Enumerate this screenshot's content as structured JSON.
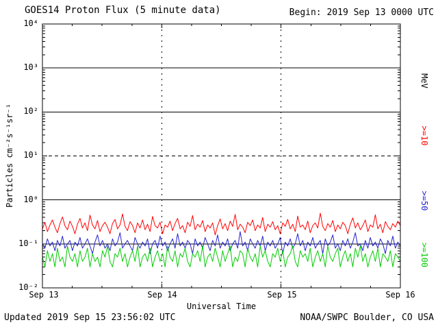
{
  "title": "GOES14 Proton Flux (5 minute data)",
  "begin_label": "Begin: 2019 Sep 13 0000 UTC",
  "footer": {
    "updated": "Updated 2019 Sep 15 23:56:02 UTC",
    "source": "NOAA/SWPC Boulder, CO USA"
  },
  "chart_data": {
    "type": "line",
    "y_scale": "log",
    "ylim": [
      0.01,
      10000
    ],
    "xlabel": "Universal Time",
    "ylabel": "Particles cm⁻²s⁻¹sr⁻¹",
    "unit_label": "MeV",
    "ytick_labels": [
      "10⁴",
      "10³",
      "10²",
      "10¹",
      "10⁰",
      "10⁻¹",
      "10⁻²"
    ],
    "categories": [
      "Sep 13",
      "Sep 14",
      "Sep 15",
      "Sep 16"
    ],
    "gridlines": {
      "solid": [
        1000,
        100,
        1,
        0.1
      ],
      "dashed": [
        10
      ],
      "vlines": [
        "Sep 14",
        "Sep 15"
      ]
    },
    "series": [
      {
        "name": ">=10 MeV",
        "label": ">=10",
        "color": "#ff0000",
        "values": [
          0.22,
          0.31,
          0.19,
          0.27,
          0.35,
          0.24,
          0.18,
          0.29,
          0.41,
          0.26,
          0.21,
          0.33,
          0.25,
          0.17,
          0.28,
          0.38,
          0.23,
          0.3,
          0.2,
          0.45,
          0.27,
          0.22,
          0.34,
          0.19,
          0.26,
          0.31,
          0.24,
          0.17,
          0.29,
          0.36,
          0.22,
          0.27,
          0.48,
          0.25,
          0.2,
          0.32,
          0.26,
          0.18,
          0.3,
          0.23,
          0.35,
          0.21,
          0.28,
          0.19,
          0.42,
          0.26,
          0.23,
          0.31,
          0.17,
          0.27,
          0.24,
          0.33,
          0.2,
          0.29,
          0.38,
          0.22,
          0.26,
          0.18,
          0.31,
          0.25,
          0.44,
          0.21,
          0.28,
          0.24,
          0.34,
          0.19,
          0.27,
          0.23,
          0.3,
          0.16,
          0.26,
          0.37,
          0.22,
          0.29,
          0.2,
          0.33,
          0.25,
          0.47,
          0.21,
          0.28,
          0.24,
          0.18,
          0.31,
          0.26,
          0.35,
          0.2,
          0.27,
          0.23,
          0.4,
          0.19,
          0.28,
          0.24,
          0.32,
          0.21,
          0.26,
          0.17,
          0.3,
          0.25,
          0.36,
          0.22,
          0.28,
          0.19,
          0.43,
          0.24,
          0.27,
          0.21,
          0.33,
          0.18,
          0.26,
          0.3,
          0.23,
          0.5,
          0.25,
          0.2,
          0.29,
          0.24,
          0.34,
          0.19,
          0.27,
          0.22,
          0.31,
          0.26,
          0.17,
          0.28,
          0.39,
          0.23,
          0.3,
          0.21,
          0.26,
          0.35,
          0.19,
          0.27,
          0.24,
          0.46,
          0.22,
          0.28,
          0.18,
          0.32,
          0.25,
          0.21,
          0.29,
          0.24,
          0.33,
          0.26
        ]
      },
      {
        "name": ">=50 MeV",
        "label": ">=50",
        "color": "#2222cc",
        "values": [
          0.1,
          0.08,
          0.13,
          0.09,
          0.11,
          0.07,
          0.12,
          0.09,
          0.15,
          0.08,
          0.1,
          0.12,
          0.07,
          0.11,
          0.09,
          0.14,
          0.08,
          0.1,
          0.13,
          0.09,
          0.06,
          0.11,
          0.16,
          0.09,
          0.12,
          0.08,
          0.1,
          0.07,
          0.13,
          0.09,
          0.11,
          0.18,
          0.08,
          0.1,
          0.12,
          0.09,
          0.07,
          0.14,
          0.1,
          0.08,
          0.11,
          0.09,
          0.13,
          0.06,
          0.1,
          0.12,
          0.08,
          0.15,
          0.09,
          0.11,
          0.07,
          0.1,
          0.13,
          0.08,
          0.17,
          0.09,
          0.11,
          0.08,
          0.12,
          0.1,
          0.06,
          0.13,
          0.09,
          0.11,
          0.08,
          0.14,
          0.1,
          0.07,
          0.12,
          0.09,
          0.16,
          0.08,
          0.11,
          0.09,
          0.13,
          0.07,
          0.1,
          0.12,
          0.08,
          0.19,
          0.09,
          0.11,
          0.07,
          0.13,
          0.1,
          0.08,
          0.12,
          0.09,
          0.15,
          0.07,
          0.11,
          0.09,
          0.12,
          0.08,
          0.1,
          0.14,
          0.06,
          0.11,
          0.09,
          0.13,
          0.08,
          0.1,
          0.17,
          0.09,
          0.12,
          0.07,
          0.11,
          0.09,
          0.14,
          0.08,
          0.1,
          0.12,
          0.06,
          0.13,
          0.09,
          0.11,
          0.16,
          0.08,
          0.1,
          0.07,
          0.12,
          0.09,
          0.13,
          0.08,
          0.11,
          0.18,
          0.09,
          0.1,
          0.07,
          0.12,
          0.08,
          0.14,
          0.09,
          0.11,
          0.08,
          0.13,
          0.1,
          0.06,
          0.12,
          0.09,
          0.15,
          0.08,
          0.11,
          0.09
        ]
      },
      {
        "name": ">=100 MeV",
        "label": ">=100",
        "color": "#00cc00",
        "values": [
          0.05,
          0.03,
          0.07,
          0.04,
          0.06,
          0.03,
          0.08,
          0.04,
          0.05,
          0.03,
          0.09,
          0.05,
          0.04,
          0.06,
          0.03,
          0.07,
          0.04,
          0.05,
          0.08,
          0.03,
          0.06,
          0.04,
          0.05,
          0.03,
          0.07,
          0.05,
          0.09,
          0.04,
          0.03,
          0.06,
          0.05,
          0.08,
          0.04,
          0.06,
          0.03,
          0.05,
          0.07,
          0.04,
          0.09,
          0.03,
          0.05,
          0.06,
          0.04,
          0.08,
          0.03,
          0.05,
          0.07,
          0.04,
          0.06,
          0.03,
          0.09,
          0.05,
          0.04,
          0.07,
          0.03,
          0.06,
          0.05,
          0.08,
          0.04,
          0.03,
          0.06,
          0.05,
          0.07,
          0.04,
          0.09,
          0.03,
          0.05,
          0.06,
          0.04,
          0.08,
          0.05,
          0.03,
          0.07,
          0.04,
          0.06,
          0.09,
          0.03,
          0.05,
          0.04,
          0.07,
          0.06,
          0.03,
          0.08,
          0.05,
          0.04,
          0.06,
          0.03,
          0.09,
          0.05,
          0.07,
          0.04,
          0.03,
          0.06,
          0.05,
          0.08,
          0.04,
          0.07,
          0.03,
          0.05,
          0.06,
          0.09,
          0.04,
          0.03,
          0.07,
          0.05,
          0.06,
          0.04,
          0.08,
          0.03,
          0.05,
          0.07,
          0.04,
          0.06,
          0.03,
          0.09,
          0.05,
          0.04,
          0.06,
          0.08,
          0.03,
          0.05,
          0.07,
          0.04,
          0.06,
          0.03,
          0.08,
          0.05,
          0.09,
          0.04,
          0.06,
          0.03,
          0.05,
          0.07,
          0.04,
          0.08,
          0.03,
          0.06,
          0.05,
          0.04,
          0.07,
          0.03,
          0.06,
          0.05,
          0.04
        ]
      }
    ]
  }
}
